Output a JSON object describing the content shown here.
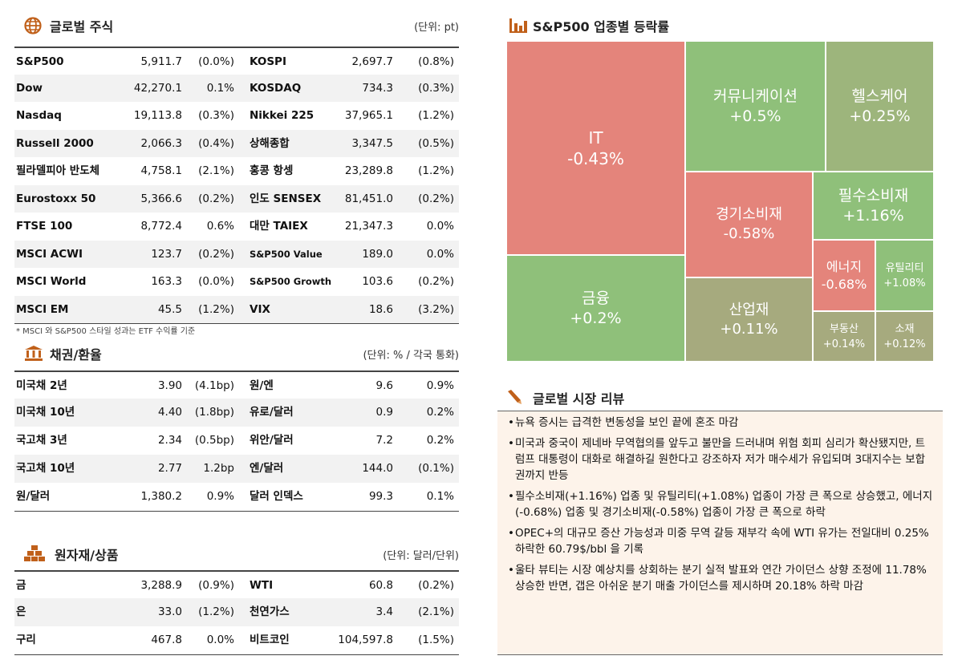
{
  "stocks": {
    "title": "글로벌 주식",
    "unit": "(단위: pt)",
    "rows": [
      [
        "S&P500",
        "5,911.7",
        "(0.0%)",
        "KOSPI",
        "2,697.7",
        "(0.8%)"
      ],
      [
        "Dow",
        "42,270.1",
        "0.1%",
        "KOSDAQ",
        "734.3",
        "(0.3%)"
      ],
      [
        "Nasdaq",
        "19,113.8",
        "(0.3%)",
        "Nikkei 225",
        "37,965.1",
        "(1.2%)"
      ],
      [
        "Russell 2000",
        "2,066.3",
        "(0.4%)",
        "상해종합",
        "3,347.5",
        "(0.5%)"
      ],
      [
        "필라델피아 반도체",
        "4,758.1",
        "(2.1%)",
        "홍콩 항셍",
        "23,289.8",
        "(1.2%)"
      ],
      [
        "Eurostoxx 50",
        "5,366.6",
        "(0.2%)",
        "인도 SENSEX",
        "81,451.0",
        "(0.2%)"
      ],
      [
        "FTSE 100",
        "8,772.4",
        "0.6%",
        "대만 TAIEX",
        "21,347.3",
        "0.0%"
      ],
      [
        "MSCI ACWI",
        "123.7",
        "(0.2%)",
        "S&P500 Value",
        "189.0",
        "0.0%"
      ],
      [
        "MSCI World",
        "163.3",
        "(0.0%)",
        "S&P500 Growth",
        "103.6",
        "(0.2%)"
      ],
      [
        "MSCI EM",
        "45.5",
        "(1.2%)",
        "VIX",
        "18.6",
        "(3.2%)"
      ]
    ],
    "note": "* MSCI 와 S&P500 스타일 성과는 ETF 수익률 기준"
  },
  "bonds_fx": {
    "title": "채권/환율",
    "unit": "(단위: % / 각국 통화)",
    "rows": [
      [
        "미국채 2년",
        "3.90",
        "(4.1bp)",
        "원/엔",
        "9.6",
        "0.9%"
      ],
      [
        "미국채 10년",
        "4.40",
        "(1.8bp)",
        "유로/달러",
        "0.9",
        "0.2%"
      ],
      [
        "국고채 3년",
        "2.34",
        "(0.5bp)",
        "위안/달러",
        "7.2",
        "0.2%"
      ],
      [
        "국고채 10년",
        "2.77",
        "1.2bp",
        "엔/달러",
        "144.0",
        "(0.1%)"
      ],
      [
        "원/달러",
        "1,380.2",
        "0.9%",
        "달러 인덱스",
        "99.3",
        "0.1%"
      ]
    ]
  },
  "commodities": {
    "title": "원자재/상품",
    "unit": "(단위: 달러/단위)",
    "rows": [
      [
        "금",
        "3,288.9",
        "(0.9%)",
        "WTI",
        "60.8",
        "(0.2%)"
      ],
      [
        "은",
        "33.0",
        "(1.2%)",
        "천연가스",
        "3.4",
        "(2.1%)"
      ],
      [
        "구리",
        "467.8",
        "0.0%",
        "비트코인",
        "104,597.8",
        "(1.5%)"
      ]
    ]
  },
  "sector_map": {
    "title": "S&P500 업종별 등락률",
    "tiles": [
      {
        "name": "IT",
        "change": "-0.43%"
      },
      {
        "name": "금융",
        "change": "+0.2%"
      },
      {
        "name": "커뮤니케이션",
        "change": "+0.5%"
      },
      {
        "name": "헬스케어",
        "change": "+0.25%"
      },
      {
        "name": "경기소비재",
        "change": "-0.58%"
      },
      {
        "name": "필수소비재",
        "change": "+1.16%"
      },
      {
        "name": "에너지",
        "change": "-0.68%"
      },
      {
        "name": "유틸리티",
        "change": "+1.08%"
      },
      {
        "name": "산업재",
        "change": "+0.11%"
      },
      {
        "name": "부동산",
        "change": "+0.14%"
      },
      {
        "name": "소재",
        "change": "+0.12%"
      }
    ]
  },
  "review": {
    "title": "글로벌 시장 리뷰",
    "bullets": [
      "뉴욕 증시는 급격한 변동성을 보인 끝에 혼조 마감",
      "미국과 중국이 제네바 무역협의를 앞두고 불만을 드러내며 위험 회피 심리가 확산됐지만, 트럼프 대통령이 대화로 해결하길 원한다고 강조하자 저가 매수세가 유입되며 3대지수는 보합권까지 반등",
      "필수소비재(+1.16%) 업종 및 유틸리티(+1.08%) 업종이 가장 큰 폭으로 상승했고, 에너지(-0.68%) 업종 및 경기소비재(-0.58%) 업종이 가장 큰 폭으로 하락",
      "OPEC+의 대규모 증산 가능성과 미중 무역 갈등 재부각 속에 WTI 유가는 전일대비 0.25% 하락한 60.79$/bbl 을 기록",
      "울타 뷰티는 시장 예상치를 상회하는 분기 실적 발표와 연간 가이던스 상향 조정에 11.78% 상승한 반면, 갭은 아쉬운 분기 매출 가이던스를 제시하며 20.18% 하락 마감"
    ]
  }
}
